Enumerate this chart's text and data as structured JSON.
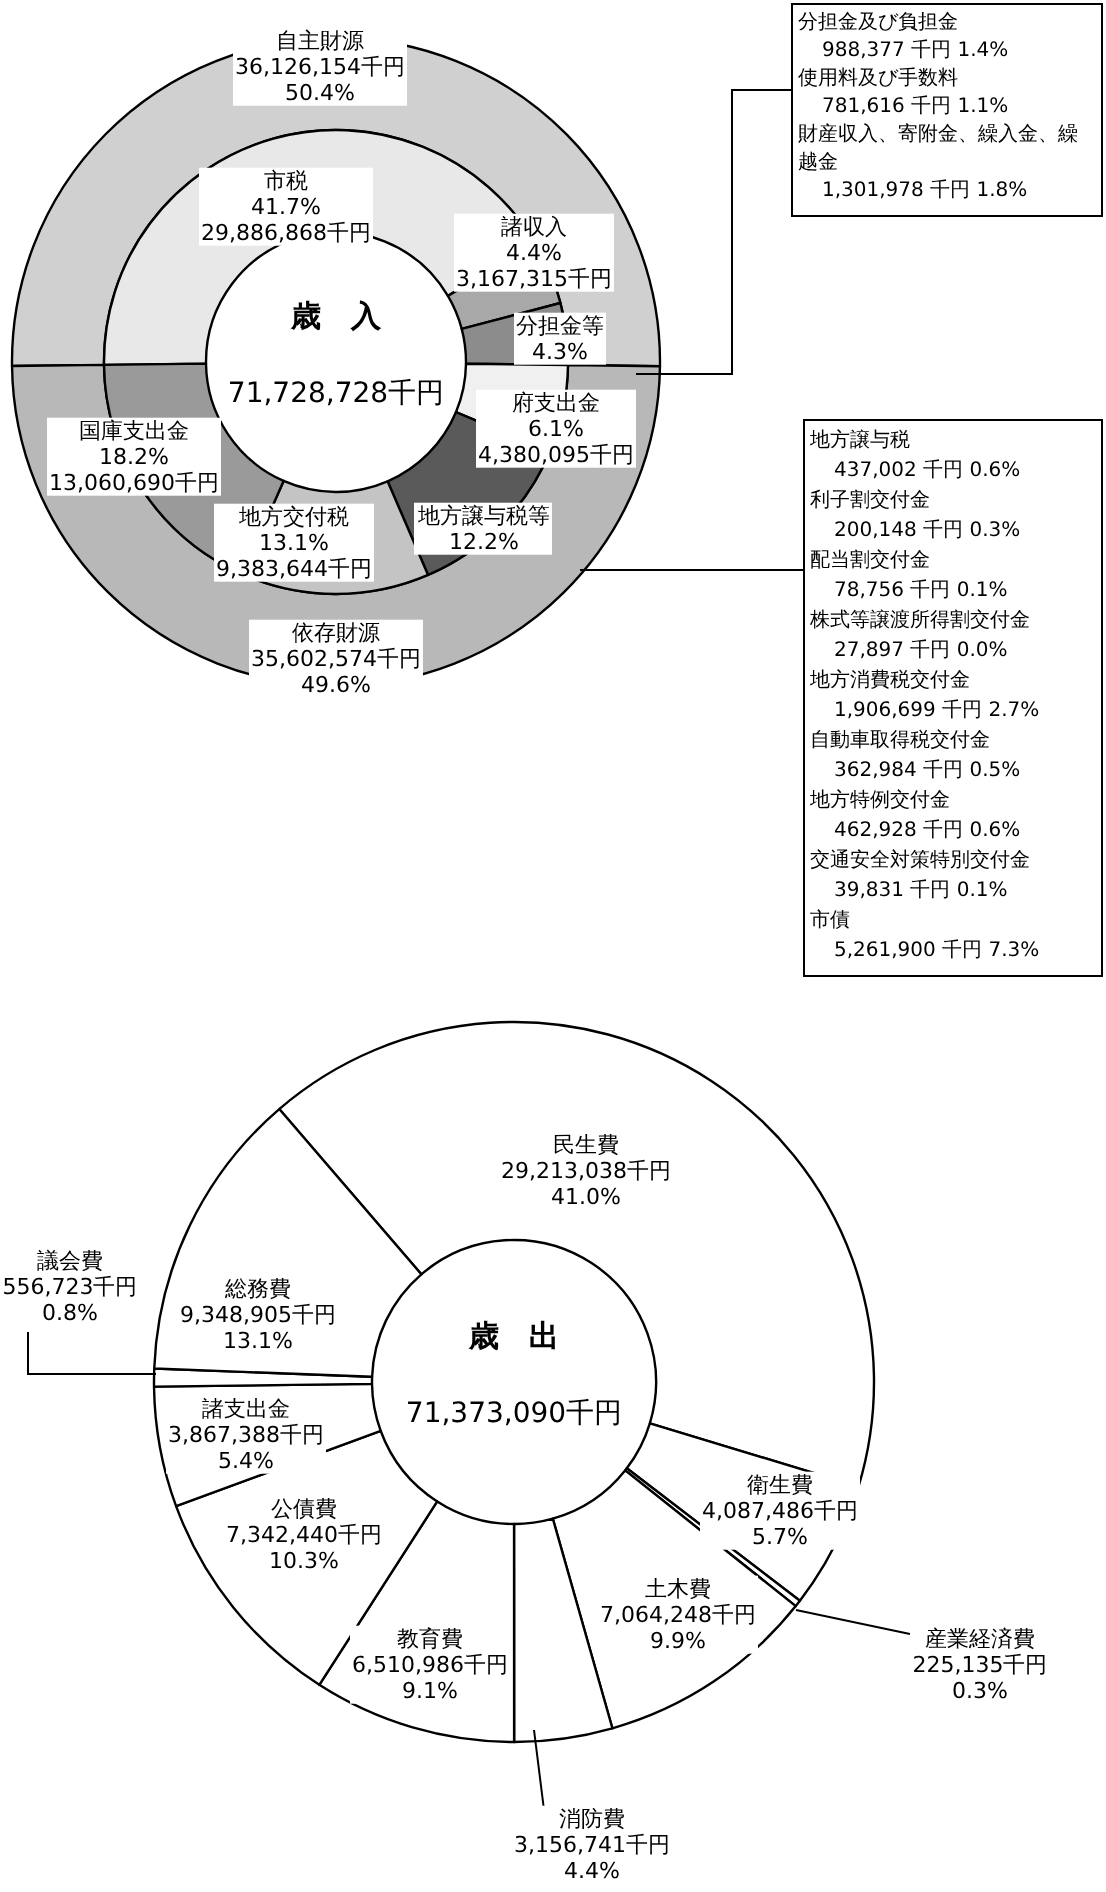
{
  "chart_data": [
    {
      "type": "donut",
      "categories": [
        "自主財源",
        "依存財源"
      ],
      "values": [
        50.4,
        49.6
      ],
      "colors": [
        "#d0d0d0",
        "#b8b8b8"
      ],
      "value_labels": [
        "36,126,154千円\n50.4%",
        "35,602,574千円\n49.6%"
      ]
    },
    {
      "type": "donut",
      "title": "歳　入",
      "subtitle": "71,728,728千円",
      "categories": [
        "市税",
        "諸収入",
        "分担金等",
        "府支出金",
        "地方譲与税等",
        "地方交付税",
        "国庫支出金"
      ],
      "values": [
        41.7,
        4.4,
        4.3,
        6.1,
        12.2,
        13.1,
        18.2
      ],
      "colors": [
        "#e8e8e8",
        "#a8a8a8",
        "#8c8c8c",
        "#f0f0f0",
        "#5a5a5a",
        "#c4c4c4",
        "#9a9a9a"
      ],
      "value_labels": [
        "41.7%\n29,886,868千円",
        "4.4%\n3,167,315千円",
        "4.3%",
        "6.1%\n4,380,095千円",
        "12.2%",
        "13.1%\n9,383,644千円",
        "18.2%\n13,060,690千円"
      ],
      "annotations": [
        "分担金及び負担金\n988,377 千円 1.4%\n使用料及び手数料\n781,616 千円 1.1%\n財産収入、寄附金、繰入金、繰越金\n1,301,978 千円 1.8%",
        "地方譲与税\n437,002 千円 0.6%\n利子割交付金\n200,148 千円 0.3%\n配当割交付金\n78,756 千円 0.1%\n株式等譲渡所得割交付金\n27,897 千円 0.0%\n地方消費税交付金\n1,906,699 千円 2.7%\n自動車取得税交付金\n362,984 千円 0.5%\n地方特例交付金\n462,928 千円 0.6%\n交通安全対策特別交付金\n39,831 千円 0.1%\n市債\n5,261,900 千円 7.3%"
      ]
    },
    {
      "type": "donut",
      "title": "歳　出",
      "subtitle": "71,373,090千円",
      "categories": [
        "民生費",
        "衛生費",
        "産業経済費",
        "土木費",
        "消防費",
        "教育費",
        "公債費",
        "諸支出金",
        "議会費",
        "総務費"
      ],
      "values": [
        41.0,
        5.7,
        0.3,
        9.9,
        4.4,
        9.1,
        10.3,
        5.4,
        0.8,
        13.1
      ],
      "colors": [
        "#ffffff",
        "#ffffff",
        "#ffffff",
        "#ffffff",
        "#ffffff",
        "#ffffff",
        "#ffffff",
        "#ffffff",
        "#ffffff",
        "#ffffff"
      ],
      "value_labels": [
        "29,213,038千円\n41.0%",
        "4,087,486千円\n5.7%",
        "225,135千円\n0.3%",
        "7,064,248千円\n9.9%",
        "3,156,741千円\n4.4%",
        "6,510,986千円\n9.1%",
        "7,342,440千円\n10.3%",
        "3,867,388千円\n5.4%",
        "556,723千円\n0.8%",
        "9,348,905千円\n13.1%"
      ]
    }
  ]
}
